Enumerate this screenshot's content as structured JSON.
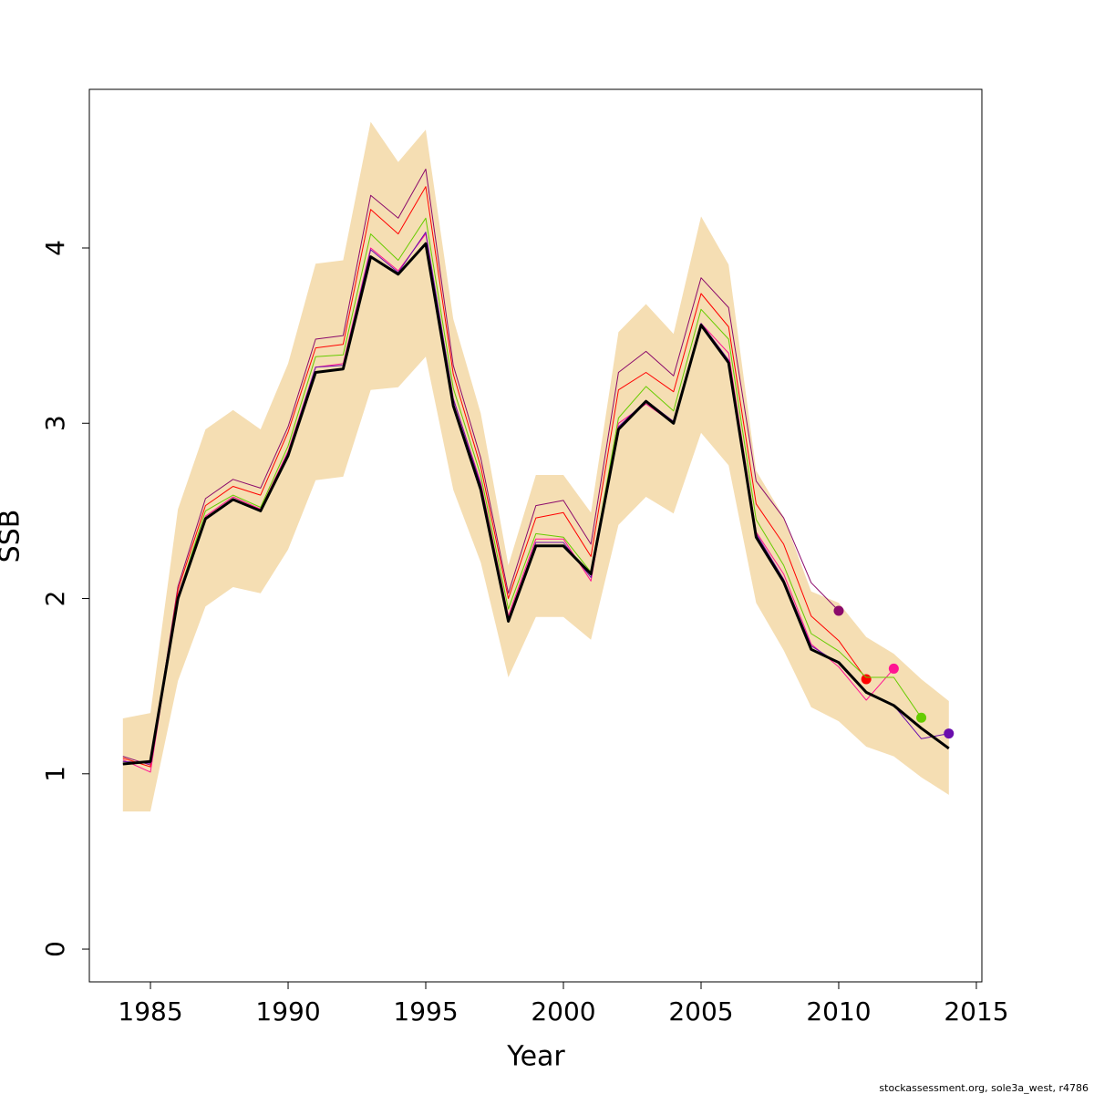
{
  "chart_data": {
    "type": "line",
    "xlabel": "Year",
    "ylabel": "SSB",
    "footnote": "stockassessment.org, sole3a_west, r4786",
    "x": [
      1984,
      1985,
      1986,
      1987,
      1988,
      1989,
      1990,
      1991,
      1992,
      1993,
      1994,
      1995,
      1996,
      1997,
      1998,
      1999,
      2000,
      2001,
      2002,
      2003,
      2004,
      2005,
      2006,
      2007,
      2008,
      2009,
      2010,
      2011,
      2012,
      2013,
      2014
    ],
    "band": {
      "color": "#f5deb3",
      "upper": [
        1.316,
        1.347,
        2.51,
        2.965,
        3.075,
        2.965,
        3.34,
        3.91,
        3.93,
        4.72,
        4.49,
        4.675,
        3.595,
        3.055,
        2.19,
        2.705,
        2.705,
        2.49,
        3.52,
        3.68,
        3.51,
        4.18,
        3.905,
        2.73,
        2.465,
        2.04,
        1.975,
        1.78,
        1.685,
        1.54,
        1.415
      ],
      "lower": [
        0.785,
        0.785,
        1.53,
        1.955,
        2.065,
        2.03,
        2.28,
        2.675,
        2.695,
        3.19,
        3.205,
        3.38,
        2.62,
        2.205,
        1.55,
        1.895,
        1.895,
        1.765,
        2.42,
        2.58,
        2.485,
        2.945,
        2.76,
        1.975,
        1.705,
        1.38,
        1.3,
        1.155,
        1.1,
        0.98,
        0.88
      ]
    },
    "series": [
      {
        "color": "#8b0a6b",
        "width": 1,
        "point": true,
        "values": [
          1.1,
          1.05,
          2.07,
          2.57,
          2.68,
          2.63,
          2.98,
          3.48,
          3.5,
          4.3,
          4.17,
          4.45,
          3.33,
          2.8,
          2.03,
          2.53,
          2.56,
          2.31,
          3.29,
          3.41,
          3.27,
          3.83,
          3.66,
          2.67,
          2.46,
          2.09,
          1.93,
          null,
          null,
          null,
          null
        ]
      },
      {
        "color": "#ff0000",
        "width": 1,
        "point": true,
        "values": [
          1.09,
          1.04,
          2.05,
          2.53,
          2.64,
          2.59,
          2.95,
          3.43,
          3.45,
          4.22,
          4.08,
          4.35,
          3.28,
          2.75,
          2.0,
          2.46,
          2.49,
          2.24,
          3.19,
          3.29,
          3.18,
          3.74,
          3.55,
          2.54,
          2.31,
          1.9,
          1.76,
          1.54,
          null,
          null,
          null
        ]
      },
      {
        "color": "#ff1493",
        "width": 1,
        "point": true,
        "values": [
          1.08,
          1.01,
          2.02,
          2.47,
          2.58,
          2.51,
          2.84,
          3.32,
          3.34,
          4.0,
          3.87,
          4.08,
          3.14,
          2.66,
          1.9,
          2.34,
          2.34,
          2.1,
          3.0,
          3.11,
          3.0,
          3.57,
          3.4,
          2.38,
          2.14,
          1.74,
          1.61,
          1.42,
          1.6,
          null,
          null
        ]
      },
      {
        "color": "#66cc00",
        "width": 1,
        "point": true,
        "values": [
          1.07,
          1.06,
          2.01,
          2.5,
          2.59,
          2.52,
          2.87,
          3.38,
          3.39,
          4.08,
          3.93,
          4.17,
          3.2,
          2.7,
          1.94,
          2.37,
          2.35,
          2.15,
          3.03,
          3.21,
          3.07,
          3.65,
          3.48,
          2.45,
          2.19,
          1.8,
          1.7,
          1.55,
          1.55,
          1.32,
          null
        ]
      },
      {
        "color": "#6a0dad",
        "width": 1,
        "point": true,
        "values": [
          1.07,
          1.06,
          2.0,
          2.46,
          2.57,
          2.5,
          2.83,
          3.32,
          3.33,
          3.99,
          3.86,
          4.09,
          3.14,
          2.65,
          1.88,
          2.32,
          2.32,
          2.12,
          2.98,
          3.13,
          3.01,
          3.57,
          3.36,
          2.37,
          2.11,
          1.73,
          1.63,
          1.46,
          1.39,
          1.2,
          1.23
        ]
      },
      {
        "color": "#000000",
        "width": 3,
        "point": false,
        "values": [
          1.056,
          1.07,
          2.0,
          2.455,
          2.565,
          2.5,
          2.815,
          3.29,
          3.31,
          3.95,
          3.85,
          4.025,
          3.1,
          2.62,
          1.87,
          2.3,
          2.3,
          2.14,
          2.965,
          3.125,
          3.0,
          3.56,
          3.345,
          2.35,
          2.095,
          1.71,
          1.635,
          1.465,
          1.39,
          1.26,
          1.145
        ]
      }
    ],
    "xlim": [
      1982.78,
      2015.2
    ],
    "ylim": [
      -0.187,
      4.905
    ],
    "xticks": [
      1985,
      1990,
      1995,
      2000,
      2005,
      2010,
      2015
    ],
    "yticks": [
      0,
      1,
      2,
      3,
      4
    ]
  }
}
